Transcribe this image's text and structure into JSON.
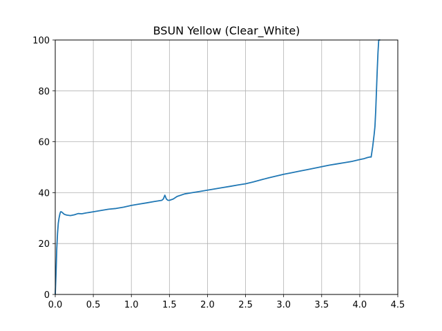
{
  "chart_data": {
    "type": "line",
    "title": "BSUN Yellow (Clear_White)",
    "xlabel": "",
    "ylabel": "",
    "xlim": [
      0,
      4.5
    ],
    "ylim": [
      0,
      100
    ],
    "x_ticks": [
      0.0,
      0.5,
      1.0,
      1.5,
      2.0,
      2.5,
      3.0,
      3.5,
      4.0,
      4.5
    ],
    "x_tick_labels": [
      "0.0",
      "0.5",
      "1.0",
      "1.5",
      "2.0",
      "2.5",
      "3.0",
      "3.5",
      "4.0",
      "4.5"
    ],
    "y_ticks": [
      0,
      20,
      40,
      60,
      80,
      100
    ],
    "y_tick_labels": [
      "0",
      "20",
      "40",
      "60",
      "80",
      "100"
    ],
    "grid": true,
    "line_color": "#1f77b4",
    "series": [
      {
        "x": [
          0.0,
          0.01,
          0.02,
          0.03,
          0.04,
          0.05,
          0.06,
          0.07,
          0.08,
          0.1,
          0.12,
          0.15,
          0.2,
          0.25,
          0.3,
          0.35,
          0.4,
          0.5,
          0.6,
          0.7,
          0.8,
          0.9,
          1.0,
          1.1,
          1.2,
          1.3,
          1.4,
          1.42,
          1.44,
          1.46,
          1.48,
          1.5,
          1.55,
          1.6,
          1.7,
          1.8,
          1.9,
          2.0,
          2.1,
          2.2,
          2.3,
          2.4,
          2.5,
          2.6,
          2.7,
          2.8,
          2.9,
          3.0,
          3.1,
          3.2,
          3.3,
          3.4,
          3.5,
          3.6,
          3.7,
          3.8,
          3.9,
          4.0,
          4.05,
          4.1,
          4.13,
          4.15,
          4.17,
          4.19,
          4.2,
          4.21,
          4.22,
          4.23,
          4.24,
          4.25,
          4.26,
          4.27
        ],
        "y": [
          0,
          8,
          18,
          24,
          28,
          30,
          31.5,
          32.5,
          32.5,
          32,
          31.5,
          31.2,
          31,
          31.3,
          31.8,
          31.7,
          32,
          32.5,
          33,
          33.5,
          33.8,
          34.3,
          35,
          35.5,
          36,
          36.5,
          37,
          37.5,
          39,
          37.5,
          37,
          37,
          37.5,
          38.5,
          39.5,
          40,
          40.5,
          41,
          41.5,
          42,
          42.5,
          43,
          43.5,
          44.2,
          45,
          45.8,
          46.5,
          47.2,
          47.8,
          48.4,
          49,
          49.6,
          50.2,
          50.8,
          51.3,
          51.8,
          52.3,
          53,
          53.3,
          53.8,
          54,
          54,
          58,
          63,
          66,
          72,
          80,
          88,
          95,
          100,
          100,
          100
        ]
      }
    ]
  }
}
